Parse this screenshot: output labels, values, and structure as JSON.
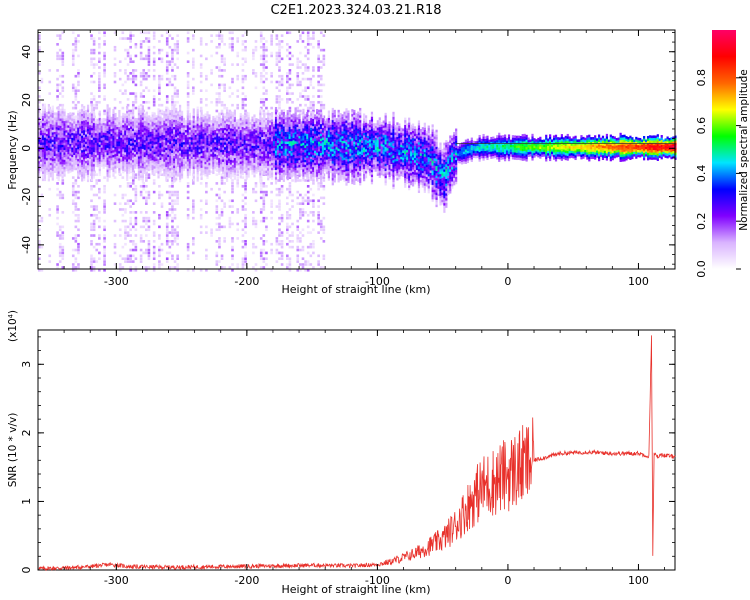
{
  "figure": {
    "title": "C2E1.2023.324.03.21.R18"
  },
  "chart_data": [
    {
      "type": "heatmap",
      "xlabel": "Height of straight line (km)",
      "ylabel": "Frequency (Hz)",
      "xlim": [
        -360,
        128
      ],
      "ylim": [
        -50,
        49
      ],
      "xticks": [
        -300,
        -200,
        -100,
        0,
        100
      ],
      "yticks": [
        -40,
        -20,
        0,
        20,
        40
      ],
      "grid": false,
      "colorbar": {
        "label": "Normalized spectral amplitude",
        "range": [
          0,
          1
        ],
        "ticks": [
          "0.0",
          "0.2",
          "0.4",
          "0.6",
          "0.8"
        ],
        "colors": [
          "#ffffff",
          "#d9b3ff",
          "#8000ff",
          "#0000ff",
          "#00e5ff",
          "#00ff00",
          "#ffff00",
          "#ff6600",
          "#ff0000",
          "#ff0066"
        ]
      },
      "ridge": {
        "x": [
          -360,
          -300,
          -200,
          -150,
          -100,
          -80,
          -60,
          -50,
          -45,
          -40,
          -30,
          -20,
          0,
          50,
          100,
          128
        ],
        "freq_hz": [
          3,
          3,
          2,
          2,
          1,
          -1,
          -4,
          -12,
          -6,
          -2,
          0,
          1,
          1,
          1,
          1,
          1
        ]
      }
    },
    {
      "type": "line",
      "xlabel": "Height of straight line (km)",
      "ylabel": "SNR (10 * v/v)",
      "y_multiplier": "(x10⁴)",
      "xlim": [
        -360,
        128
      ],
      "ylim": [
        0,
        3.5
      ],
      "xticks": [
        -300,
        -200,
        -100,
        0,
        100
      ],
      "yticks": [
        0,
        1,
        2,
        3
      ],
      "grid": false,
      "color": "#e8302a",
      "series": [
        {
          "x": [
            -360,
            -340,
            -320,
            -305,
            -290,
            -260,
            -220,
            -180,
            -150,
            -120,
            -100,
            -90,
            -80,
            -70,
            -60,
            -50,
            -40,
            -30,
            -20,
            -10,
            0,
            10,
            20,
            30,
            40,
            60,
            80,
            100,
            105,
            108,
            110,
            111,
            112,
            114,
            118,
            128
          ],
          "y": [
            0.02,
            0.03,
            0.05,
            0.08,
            0.05,
            0.04,
            0.05,
            0.06,
            0.07,
            0.06,
            0.08,
            0.12,
            0.18,
            0.25,
            0.35,
            0.45,
            0.65,
            0.95,
            1.2,
            1.3,
            1.4,
            1.5,
            1.6,
            1.65,
            1.7,
            1.72,
            1.7,
            1.7,
            1.68,
            1.65,
            3.45,
            0.2,
            1.7,
            1.65,
            1.68,
            1.65
          ]
        }
      ]
    }
  ]
}
